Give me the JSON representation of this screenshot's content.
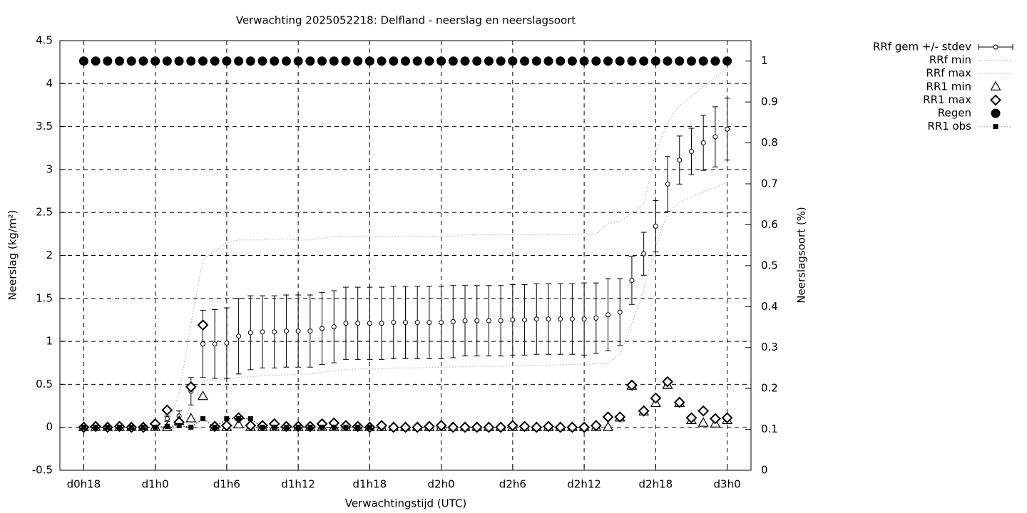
{
  "chart_data": {
    "type": "errorbar",
    "title": "Verwachting 2025052218: Delfland - neerslag en neerslagsoort",
    "x_label": "Verwachtingstijd (UTC)",
    "y_label": "Neerslag (kg/m²)",
    "y2_label": "Neerslagsoort (%)",
    "categories": [
      "d0h18",
      null,
      null,
      null,
      null,
      null,
      "d1h0",
      null,
      null,
      null,
      null,
      null,
      "d1h6",
      null,
      null,
      null,
      null,
      null,
      "d1h12",
      null,
      null,
      null,
      null,
      null,
      "d1h18",
      null,
      null,
      null,
      null,
      null,
      "d2h0",
      null,
      null,
      null,
      null,
      null,
      "d2h6",
      null,
      null,
      null,
      null,
      null,
      "d2h12",
      null,
      null,
      null,
      null,
      null,
      "d2h18",
      null,
      null,
      null,
      null,
      null,
      "d3h0"
    ],
    "ylim": [
      -0.5,
      4.5
    ],
    "yticks": [
      -0.5,
      0,
      0.5,
      1,
      1.5,
      2,
      2.5,
      3,
      3.5,
      4,
      4.5
    ],
    "y2lim": [
      0,
      1.05
    ],
    "y2ticks": [
      0,
      0.1,
      0.2,
      0.3,
      0.4,
      0.5,
      0.6,
      0.7,
      0.8,
      0.9,
      1
    ],
    "grid": true,
    "legend": "right",
    "series": [
      {
        "name": "RRf gem +/- stdev",
        "marker": "errorbar",
        "color": "#000000",
        "values": [
          0,
          0,
          0,
          0,
          0,
          0,
          0,
          0.1,
          0.13,
          0.42,
          0.97,
          0.97,
          0.98,
          1.06,
          1.1,
          1.11,
          1.11,
          1.12,
          1.12,
          1.12,
          1.15,
          1.17,
          1.21,
          1.21,
          1.21,
          1.21,
          1.22,
          1.22,
          1.22,
          1.22,
          1.22,
          1.23,
          1.24,
          1.24,
          1.24,
          1.24,
          1.25,
          1.25,
          1.26,
          1.26,
          1.26,
          1.26,
          1.26,
          1.27,
          1.31,
          1.34,
          1.71,
          2.02,
          2.34,
          2.83,
          3.11,
          3.21,
          3.31,
          3.38,
          3.47
        ],
        "errors": [
          0,
          0,
          0,
          0,
          0,
          0,
          0,
          0.03,
          0.06,
          0.16,
          0.39,
          0.4,
          0.41,
          0.44,
          0.43,
          0.42,
          0.42,
          0.42,
          0.42,
          0.42,
          0.42,
          0.42,
          0.42,
          0.42,
          0.42,
          0.42,
          0.42,
          0.42,
          0.42,
          0.42,
          0.42,
          0.42,
          0.41,
          0.41,
          0.41,
          0.41,
          0.41,
          0.41,
          0.41,
          0.41,
          0.41,
          0.41,
          0.42,
          0.41,
          0.42,
          0.39,
          0.28,
          0.25,
          0.3,
          0.32,
          0.28,
          0.27,
          0.32,
          0.35,
          0.36
        ]
      },
      {
        "name": "RRf min",
        "marker": "dotted-line",
        "color": "#b8b8b8",
        "values": [
          0,
          0,
          0,
          0,
          0,
          0,
          0,
          0,
          0,
          0.25,
          0.53,
          0.55,
          0.56,
          0.58,
          0.59,
          0.6,
          0.6,
          0.61,
          0.62,
          0.62,
          0.64,
          0.66,
          0.67,
          0.68,
          0.68,
          0.68,
          0.69,
          0.69,
          0.69,
          0.7,
          0.7,
          0.7,
          0.71,
          0.71,
          0.71,
          0.71,
          0.72,
          0.72,
          0.72,
          0.72,
          0.73,
          0.73,
          0.73,
          0.74,
          0.74,
          0.85,
          1.2,
          1.6,
          2.1,
          2.5,
          2.62,
          2.68,
          2.74,
          2.79,
          2.85
        ]
      },
      {
        "name": "RRf max",
        "marker": "dotted-line",
        "color": "#b8b8b8",
        "values": [
          0,
          0,
          0,
          0,
          0,
          0,
          0,
          0,
          0.4,
          1.2,
          1.95,
          2.05,
          2.15,
          2.18,
          2.18,
          2.18,
          2.19,
          2.19,
          2.18,
          2.18,
          2.2,
          2.22,
          2.22,
          2.22,
          2.22,
          2.22,
          2.22,
          2.22,
          2.22,
          2.22,
          2.22,
          2.22,
          2.24,
          2.24,
          2.24,
          2.24,
          2.24,
          2.24,
          2.24,
          2.24,
          2.24,
          2.24,
          2.25,
          2.25,
          2.37,
          2.4,
          2.5,
          2.6,
          3.2,
          3.55,
          3.75,
          3.85,
          3.97,
          4.07,
          4.18
        ]
      },
      {
        "name": "RR1 min",
        "marker": "triangle",
        "color": "#000000",
        "values": [
          0,
          0,
          0,
          0,
          0,
          0,
          0,
          0,
          0.07,
          0.1,
          0.36,
          0,
          0,
          0.03,
          0,
          0,
          0,
          0,
          0,
          0,
          0,
          0,
          0,
          0,
          0,
          0,
          0,
          0,
          0,
          0,
          0,
          0,
          0,
          0,
          0,
          0,
          0,
          0,
          0,
          0,
          0,
          0,
          0,
          0,
          0,
          0.11,
          0.48,
          0.18,
          0.28,
          0.49,
          0.28,
          0.08,
          0.05,
          0.04,
          0.08
        ]
      },
      {
        "name": "RR1 max",
        "marker": "diamond",
        "color": "#000000",
        "values": [
          0,
          0.01,
          0,
          0.01,
          0,
          0,
          0.04,
          0.2,
          0.06,
          0.47,
          1.19,
          0.01,
          0.02,
          0.11,
          0.02,
          0.02,
          0.04,
          0.01,
          0.01,
          0.01,
          0.04,
          0.05,
          0.02,
          0.01,
          0,
          0.02,
          0,
          0,
          0,
          0.01,
          0.02,
          0,
          0,
          0,
          0,
          0,
          0.02,
          0.01,
          0,
          0.01,
          0,
          0,
          0,
          0.02,
          0.12,
          0.12,
          0.49,
          0.19,
          0.34,
          0.53,
          0.29,
          0.11,
          0.19,
          0.1,
          0.11
        ]
      },
      {
        "name": "Regen",
        "marker": "circle",
        "color": "#000000",
        "axis": "y2",
        "values": [
          1,
          1,
          1,
          1,
          1,
          1,
          1,
          1,
          1,
          1,
          1,
          1,
          1,
          1,
          1,
          1,
          1,
          1,
          1,
          1,
          1,
          1,
          1,
          1,
          1,
          1,
          1,
          1,
          1,
          1,
          1,
          1,
          1,
          1,
          1,
          1,
          1,
          1,
          1,
          1,
          1,
          1,
          1,
          1,
          1,
          1,
          1,
          1,
          1,
          1,
          1,
          1,
          1,
          1,
          1
        ]
      },
      {
        "name": "RR1 obs",
        "marker": "square-dotted",
        "color": "#000000",
        "values": [
          0,
          0,
          0,
          0,
          0,
          0,
          0,
          0.01,
          0.02,
          0,
          0.1,
          0,
          0.1,
          0.1,
          0.1,
          0,
          0,
          0,
          0,
          0,
          0,
          0,
          0,
          0,
          0,
          null,
          null,
          null,
          null,
          null,
          null,
          null,
          null,
          null,
          null,
          null,
          null,
          null,
          null,
          null,
          null,
          null,
          null,
          null,
          null,
          null,
          null,
          null,
          null,
          null,
          null,
          null,
          null,
          null,
          null
        ]
      }
    ]
  }
}
